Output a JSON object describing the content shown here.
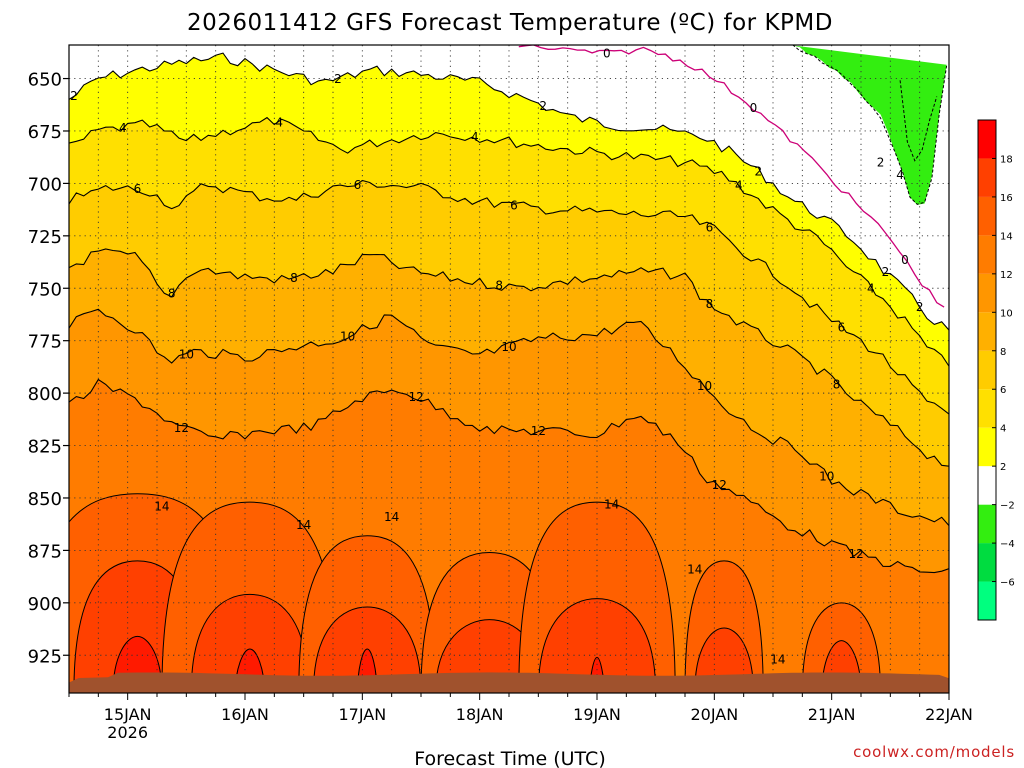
{
  "chart_data": {
    "type": "heatmap",
    "title": "2026011412 GFS Forecast Temperature (ºC) for KPMD",
    "xlabel": "Forecast Time (UTC)",
    "ylabel": "",
    "watermark": "coolwx.com/models",
    "x_ticks": [
      {
        "label": "15JAN",
        "sublabel": "2026",
        "hour": 12
      },
      {
        "label": "16JAN",
        "sublabel": "",
        "hour": 36
      },
      {
        "label": "17JAN",
        "sublabel": "",
        "hour": 60
      },
      {
        "label": "18JAN",
        "sublabel": "",
        "hour": 84
      },
      {
        "label": "19JAN",
        "sublabel": "",
        "hour": 108
      },
      {
        "label": "20JAN",
        "sublabel": "",
        "hour": 132
      },
      {
        "label": "21JAN",
        "sublabel": "",
        "hour": 156
      },
      {
        "label": "22JAN",
        "sublabel": "",
        "hour": 180
      }
    ],
    "xlim_hours": [
      0,
      180
    ],
    "y_ticks": [
      "650",
      "675",
      "700",
      "725",
      "750",
      "775",
      "800",
      "825",
      "850",
      "875",
      "900",
      "925"
    ],
    "y_values": [
      650,
      675,
      700,
      725,
      750,
      775,
      800,
      825,
      850,
      875,
      900,
      925
    ],
    "ylim_hPa": [
      634,
      943
    ],
    "y_axis": "pressure (hPa), inverted",
    "grid": true,
    "colorbar": {
      "placement": "right",
      "levels": [
        -8,
        -6,
        -4,
        -2,
        2,
        4,
        6,
        8,
        10,
        12,
        14,
        16,
        18,
        20
      ],
      "labels": [
        "−6",
        "−4",
        "−2",
        "2",
        "4",
        "6",
        "8",
        "10",
        "12",
        "14",
        "16",
        "18"
      ],
      "colors": [
        "#00ff7f",
        "#00dc40",
        "#33ee10",
        "#ffffff",
        "#ffff00",
        "#ffe000",
        "#ffcc00",
        "#ffb000",
        "#ff9600",
        "#ff7c00",
        "#ff6000",
        "#ff4000",
        "#ff0000"
      ]
    },
    "terrain_color": "#a0522d",
    "zero_contour_color": "#cc0077",
    "contours": [
      {
        "level": 0,
        "labels": [
          {
            "text": "0",
            "hour": 110
          },
          {
            "text": "0",
            "hour": 140
          },
          {
            "text": "0",
            "hour": 171
          }
        ]
      },
      {
        "level": 2,
        "labels": [
          {
            "text": "2",
            "hour": 1
          },
          {
            "text": "2",
            "hour": 55
          },
          {
            "text": "2",
            "hour": 97
          },
          {
            "text": "2",
            "hour": 141
          },
          {
            "text": "2",
            "hour": 167
          },
          {
            "text": "2",
            "hour": 174
          }
        ]
      },
      {
        "level": -2,
        "labels": [
          {
            "text": "2",
            "hour": 166
          }
        ]
      },
      {
        "level": -4,
        "labels": [
          {
            "text": "4",
            "hour": 170
          }
        ]
      },
      {
        "level": 4,
        "labels": [
          {
            "text": "4",
            "hour": 11
          },
          {
            "text": "4",
            "hour": 43
          },
          {
            "text": "4",
            "hour": 83
          },
          {
            "text": "4",
            "hour": 137
          },
          {
            "text": "4",
            "hour": 164
          }
        ]
      },
      {
        "level": 6,
        "labels": [
          {
            "text": "6",
            "hour": 14
          },
          {
            "text": "6",
            "hour": 59
          },
          {
            "text": "6",
            "hour": 91
          },
          {
            "text": "6",
            "hour": 131
          },
          {
            "text": "6",
            "hour": 158
          }
        ]
      },
      {
        "level": 8,
        "labels": [
          {
            "text": "8",
            "hour": 21
          },
          {
            "text": "8",
            "hour": 46
          },
          {
            "text": "8",
            "hour": 88
          },
          {
            "text": "8",
            "hour": 131
          },
          {
            "text": "8",
            "hour": 157
          }
        ]
      },
      {
        "level": 10,
        "labels": [
          {
            "text": "10",
            "hour": 24
          },
          {
            "text": "10",
            "hour": 57
          },
          {
            "text": "10",
            "hour": 90
          },
          {
            "text": "10",
            "hour": 130
          },
          {
            "text": "10",
            "hour": 155
          }
        ]
      },
      {
        "level": 12,
        "labels": [
          {
            "text": "12",
            "hour": 23
          },
          {
            "text": "12",
            "hour": 71
          },
          {
            "text": "12",
            "hour": 96
          },
          {
            "text": "12",
            "hour": 133
          },
          {
            "text": "12",
            "hour": 161
          }
        ]
      },
      {
        "level": 14,
        "labels": [
          {
            "text": "14",
            "hour": 19
          },
          {
            "text": "14",
            "hour": 48
          },
          {
            "text": "14",
            "hour": 66
          },
          {
            "text": "14",
            "hour": 111
          },
          {
            "text": "14",
            "hour": 128
          },
          {
            "text": "14",
            "hour": 145
          }
        ]
      }
    ]
  }
}
